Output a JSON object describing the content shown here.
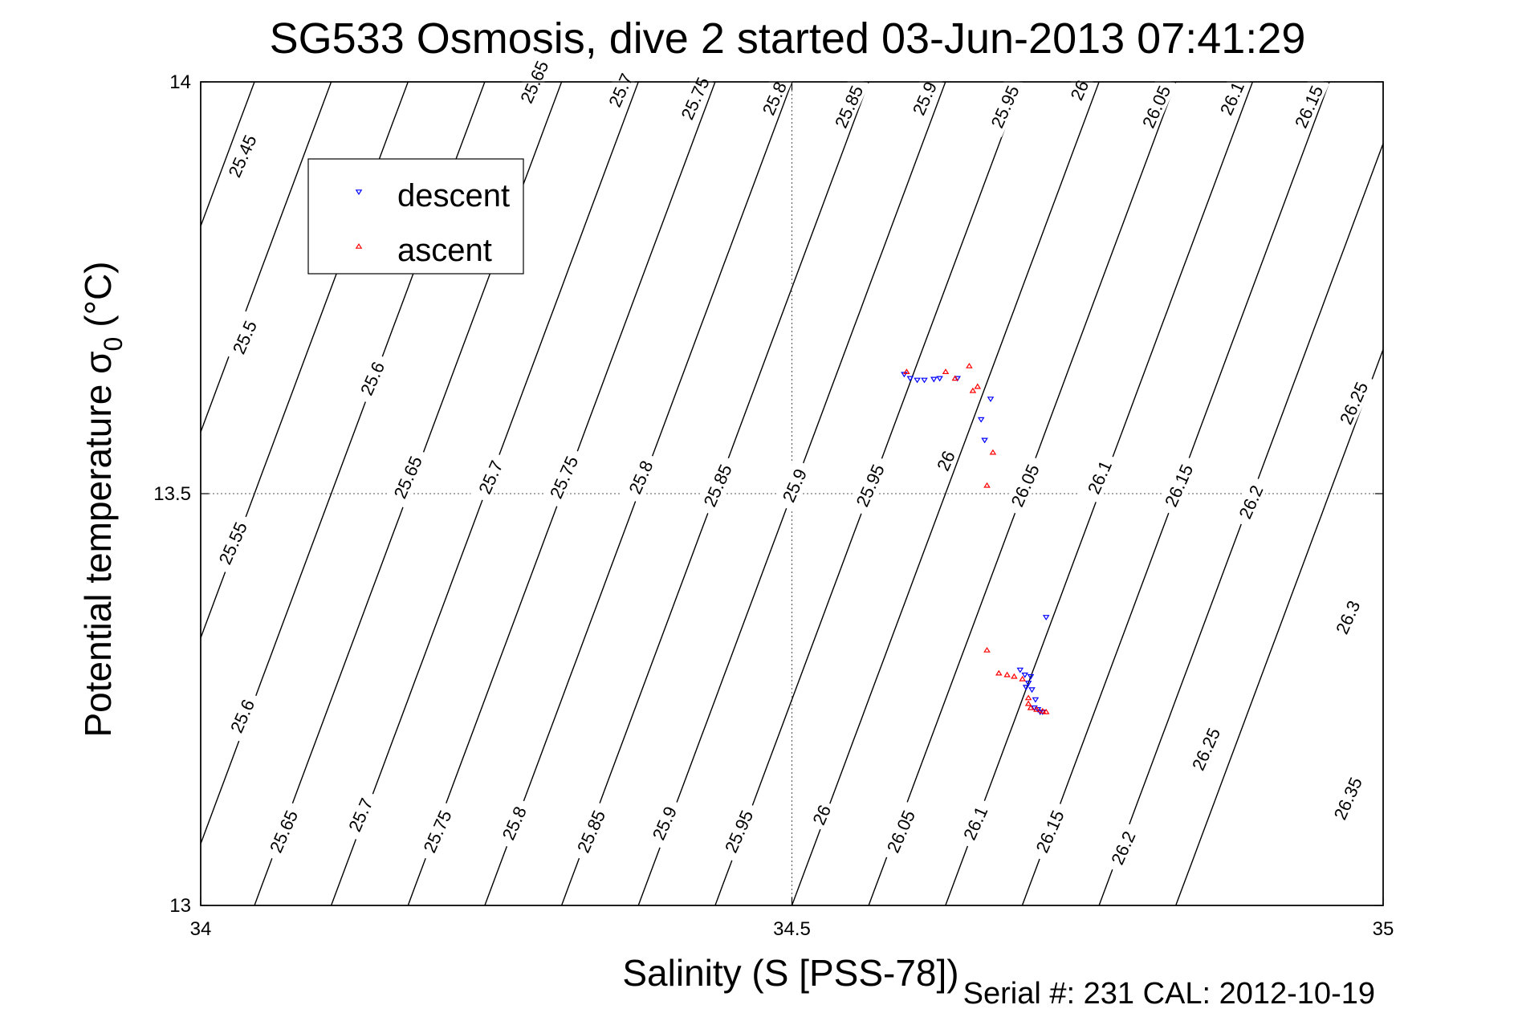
{
  "chart_data": {
    "type": "scatter",
    "title": "SG533 Osmosis, dive 2 started 03-Jun-2013 07:41:29",
    "xlabel": "Salinity (S [PSS-78])",
    "ylabel_main": "Potential temperature σ",
    "ylabel_sub": "0",
    "ylabel_unit": "(°C)",
    "footer": "Serial #: 231  CAL: 2012-10-19",
    "xlim": [
      34,
      35
    ],
    "ylim": [
      13,
      14
    ],
    "x_ticks": [
      {
        "value": 34,
        "label": "34"
      },
      {
        "value": 34.5,
        "label": "34.5"
      },
      {
        "value": 35,
        "label": "35"
      }
    ],
    "y_ticks": [
      {
        "value": 13,
        "label": "13"
      },
      {
        "value": 13.5,
        "label": "13.5"
      },
      {
        "value": 14,
        "label": "14"
      }
    ],
    "grid": true,
    "legend_position": "top-left",
    "contour_levels": [
      25.45,
      25.5,
      25.55,
      25.6,
      25.65,
      25.7,
      25.75,
      25.8,
      25.85,
      25.9,
      25.95,
      26.0,
      26.05,
      26.1,
      26.15,
      26.2,
      26.25,
      26.3,
      26.35
    ],
    "contour_labels": [
      {
        "label": "25.45",
        "s": 34.035,
        "t": 13.91
      },
      {
        "label": "25.5",
        "s": 34.037,
        "t": 13.69
      },
      {
        "label": "25.55",
        "s": 34.027,
        "t": 13.44
      },
      {
        "label": "25.6",
        "s": 34.035,
        "t": 13.23
      },
      {
        "label": "25.65",
        "s": 34.07,
        "t": 13.09
      },
      {
        "label": "25.65",
        "s": 34.282,
        "t": 14.0
      },
      {
        "label": "25.6",
        "s": 34.145,
        "t": 13.64
      },
      {
        "label": "25.65",
        "s": 34.175,
        "t": 13.52
      },
      {
        "label": "25.7",
        "s": 34.135,
        "t": 13.11
      },
      {
        "label": "25.7",
        "s": 34.355,
        "t": 13.99
      },
      {
        "label": "25.7",
        "s": 34.245,
        "t": 13.52
      },
      {
        "label": "25.75",
        "s": 34.2,
        "t": 13.09
      },
      {
        "label": "25.75",
        "s": 34.418,
        "t": 13.98
      },
      {
        "label": "25.75",
        "s": 34.307,
        "t": 13.52
      },
      {
        "label": "25.8",
        "s": 34.265,
        "t": 13.1
      },
      {
        "label": "25.8",
        "s": 34.485,
        "t": 13.98
      },
      {
        "label": "25.8",
        "s": 34.372,
        "t": 13.52
      },
      {
        "label": "25.85",
        "s": 34.33,
        "t": 13.09
      },
      {
        "label": "25.85",
        "s": 34.548,
        "t": 13.97
      },
      {
        "label": "25.85",
        "s": 34.437,
        "t": 13.51
      },
      {
        "label": "25.9",
        "s": 34.392,
        "t": 13.1
      },
      {
        "label": "25.9",
        "s": 34.612,
        "t": 13.98
      },
      {
        "label": "25.9",
        "s": 34.502,
        "t": 13.51
      },
      {
        "label": "25.95",
        "s": 34.455,
        "t": 13.09
      },
      {
        "label": "25.95",
        "s": 34.68,
        "t": 13.97
      },
      {
        "label": "25.95",
        "s": 34.566,
        "t": 13.51
      },
      {
        "label": "26",
        "s": 34.525,
        "t": 13.11
      },
      {
        "label": "26",
        "s": 34.743,
        "t": 13.99
      },
      {
        "label": "26",
        "s": 34.63,
        "t": 13.54
      },
      {
        "label": "26.05",
        "s": 34.592,
        "t": 13.09
      },
      {
        "label": "26.05",
        "s": 34.808,
        "t": 13.97
      },
      {
        "label": "26.05",
        "s": 34.697,
        "t": 13.51
      },
      {
        "label": "26.1",
        "s": 34.655,
        "t": 13.1
      },
      {
        "label": "26.1",
        "s": 34.872,
        "t": 13.98
      },
      {
        "label": "26.1",
        "s": 34.76,
        "t": 13.52
      },
      {
        "label": "26.15",
        "s": 34.718,
        "t": 13.09
      },
      {
        "label": "26.15",
        "s": 34.937,
        "t": 13.97
      },
      {
        "label": "26.15",
        "s": 34.827,
        "t": 13.51
      },
      {
        "label": "26.2",
        "s": 34.78,
        "t": 13.07
      },
      {
        "label": "26.2",
        "s": 34.888,
        "t": 13.49
      },
      {
        "label": "26.25",
        "s": 34.975,
        "t": 13.61
      },
      {
        "label": "26.25",
        "s": 34.85,
        "t": 13.19
      },
      {
        "label": "26.3",
        "s": 34.97,
        "t": 13.35
      },
      {
        "label": "26.35",
        "s": 34.97,
        "t": 13.13
      }
    ],
    "series": [
      {
        "name": "descent",
        "color": "#0000ff",
        "marker": "triangle-down",
        "points": [
          [
            34.595,
            13.645
          ],
          [
            34.6,
            13.64
          ],
          [
            34.606,
            13.638
          ],
          [
            34.612,
            13.638
          ],
          [
            34.62,
            13.639
          ],
          [
            34.625,
            13.64
          ],
          [
            34.64,
            13.64
          ],
          [
            34.66,
            13.59
          ],
          [
            34.663,
            13.565
          ],
          [
            34.668,
            13.615
          ],
          [
            34.715,
            13.35
          ],
          [
            34.693,
            13.286
          ],
          [
            34.697,
            13.28
          ],
          [
            34.7,
            13.27
          ],
          [
            34.703,
            13.262
          ],
          [
            34.706,
            13.25
          ],
          [
            34.705,
            13.24
          ],
          [
            34.708,
            13.238
          ],
          [
            34.71,
            13.235
          ],
          [
            34.712,
            13.235
          ],
          [
            34.702,
            13.278
          ],
          [
            34.698,
            13.265
          ]
        ]
      },
      {
        "name": "ascent",
        "color": "#ff0000",
        "marker": "triangle-up",
        "points": [
          [
            34.597,
            13.648
          ],
          [
            34.63,
            13.648
          ],
          [
            34.638,
            13.64
          ],
          [
            34.65,
            13.655
          ],
          [
            34.653,
            13.625
          ],
          [
            34.657,
            13.63
          ],
          [
            34.67,
            13.55
          ],
          [
            34.665,
            13.51
          ],
          [
            34.665,
            13.31
          ],
          [
            34.675,
            13.282
          ],
          [
            34.682,
            13.28
          ],
          [
            34.688,
            13.278
          ],
          [
            34.695,
            13.275
          ],
          [
            34.7,
            13.252
          ],
          [
            34.7,
            13.245
          ],
          [
            34.702,
            13.24
          ],
          [
            34.707,
            13.238
          ],
          [
            34.712,
            13.236
          ],
          [
            34.715,
            13.235
          ]
        ]
      }
    ]
  }
}
